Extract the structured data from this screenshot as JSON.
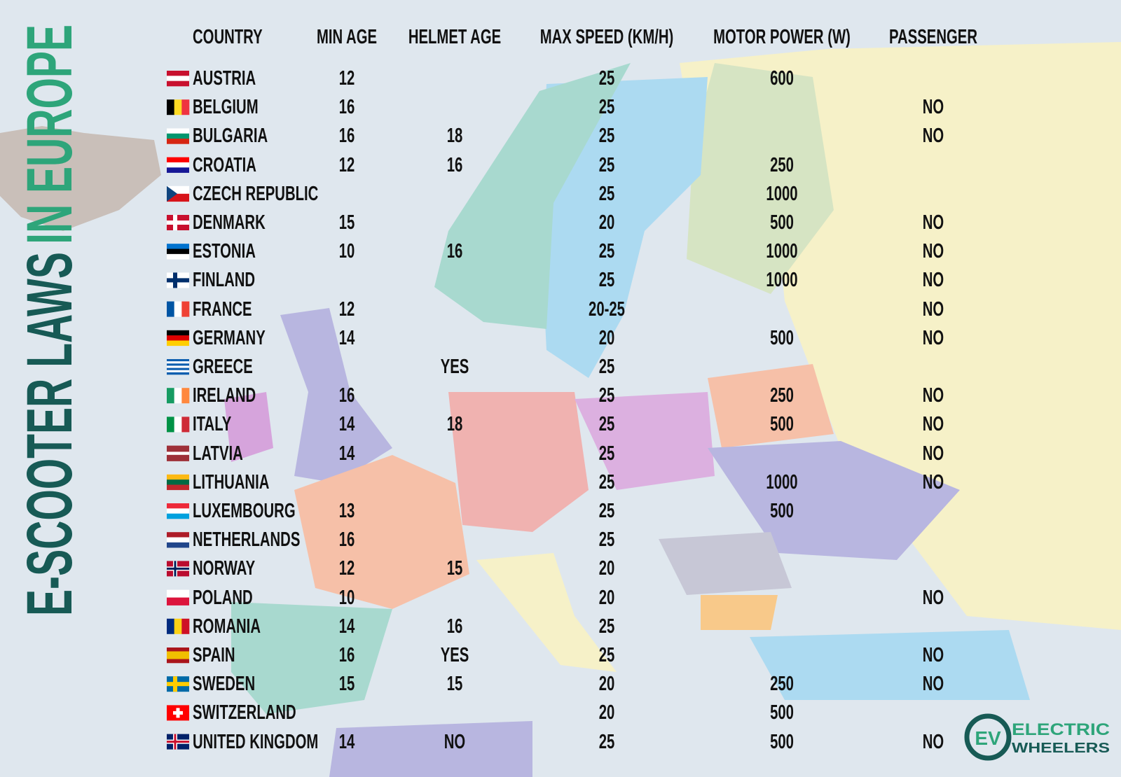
{
  "title": {
    "part1": "E-SCOOTER LAWS",
    "part2": "IN EUROPE"
  },
  "table": {
    "headers": [
      "COUNTRY",
      "MIN AGE",
      "HELMET AGE",
      "MAX SPEED (KM/H)",
      "MOTOR POWER (W)",
      "PASSENGER"
    ],
    "rows": [
      [
        "AUSTRIA",
        12,
        null,
        25,
        600,
        null
      ],
      [
        "BELGIUM",
        16,
        null,
        25,
        null,
        "NO"
      ],
      [
        "BULGARIA",
        16,
        18,
        25,
        null,
        "NO"
      ],
      [
        "CROATIA",
        12,
        16,
        25,
        250,
        null
      ],
      [
        "CZECH REPUBLIC",
        null,
        null,
        25,
        1000,
        null
      ],
      [
        "DENMARK",
        15,
        null,
        20,
        500,
        "NO"
      ],
      [
        "ESTONIA",
        10,
        16,
        25,
        1000,
        "NO"
      ],
      [
        "FINLAND",
        null,
        null,
        25,
        1000,
        "NO"
      ],
      [
        "FRANCE",
        12,
        null,
        "20-25",
        null,
        "NO"
      ],
      [
        "GERMANY",
        14,
        null,
        20,
        500,
        "NO"
      ],
      [
        "GREECE",
        null,
        "YES",
        25,
        null,
        null
      ],
      [
        "IRELAND",
        16,
        null,
        25,
        250,
        "NO"
      ],
      [
        "ITALY",
        14,
        18,
        25,
        500,
        "NO"
      ],
      [
        "LATVIA",
        14,
        null,
        25,
        null,
        "NO"
      ],
      [
        "LITHUANIA",
        null,
        null,
        25,
        1000,
        "NO"
      ],
      [
        "LUXEMBOURG",
        13,
        null,
        25,
        500,
        null
      ],
      [
        "NETHERLANDS",
        16,
        null,
        25,
        null,
        null
      ],
      [
        "NORWAY",
        12,
        15,
        20,
        null,
        null
      ],
      [
        "POLAND",
        10,
        null,
        20,
        null,
        "NO"
      ],
      [
        "ROMANIA",
        14,
        16,
        25,
        null,
        null
      ],
      [
        "SPAIN",
        16,
        "YES",
        25,
        null,
        "NO"
      ],
      [
        "SWEDEN",
        15,
        15,
        20,
        250,
        "NO"
      ],
      [
        "SWITZERLAND",
        null,
        null,
        20,
        500,
        null
      ],
      [
        "UNITED KINGDOM",
        14,
        "NO",
        25,
        500,
        "NO"
      ]
    ]
  },
  "logo": {
    "mark": "EV",
    "line1": "ELECTRIC",
    "line2": "WHEELERS"
  }
}
